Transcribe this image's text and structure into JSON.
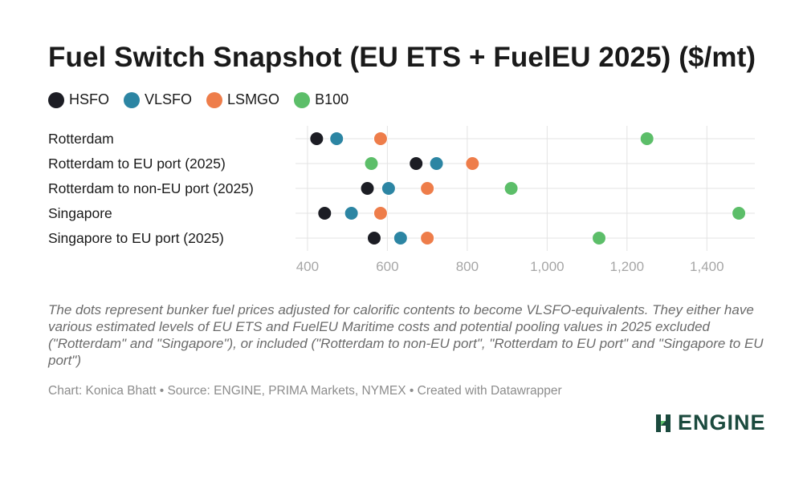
{
  "colors": {
    "HSFO": "#1c1d24",
    "VLSFO": "#2c85a3",
    "LSMGO": "#ee7d4a",
    "B100": "#5cbe69",
    "grid": "#e3e3e3",
    "tick": "#a6a6a6",
    "logo": "#1b4a3e"
  },
  "footer": {
    "note": "The dots represent bunker fuel prices adjusted for calorific contents to become VLSFO-equivalents. They either have various estimated levels of EU ETS and FuelEU Maritime costs and potential pooling values in 2025 excluded (\"Rotterdam\" and \"Singapore\"), or included (\"Rotterdam to non-EU port\", \"Rotterdam to EU port\" and \"Singapore to EU port\")",
    "source": "Chart: Konica Bhatt • Source: ENGINE, PRIMA Markets, NYMEX • Created with Datawrapper"
  },
  "logo": {
    "text": "ENGINE",
    "icon": "engine-logo-icon"
  },
  "chart_data": {
    "type": "scatter",
    "title": "Fuel Switch Snapshot (EU ETS + FuelEU 2025) ($/mt)",
    "xlabel": "",
    "ylabel": "",
    "xlim": [
      370,
      1520
    ],
    "xticks": [
      400,
      600,
      800,
      1000,
      1200,
      1400
    ],
    "xtick_labels": [
      "400",
      "600",
      "800",
      "1,000",
      "1,200",
      "1,400"
    ],
    "grid": true,
    "legend_position": "top-left",
    "categories": [
      "Rotterdam",
      "Rotterdam to EU port (2025)",
      "Rotterdam to non-EU port (2025)",
      "Singapore",
      "Singapore to EU port (2025)"
    ],
    "series": [
      {
        "name": "HSFO",
        "values": [
          423,
          672,
          550,
          443,
          567
        ]
      },
      {
        "name": "VLSFO",
        "values": [
          473,
          723,
          603,
          510,
          633
        ]
      },
      {
        "name": "LSMGO",
        "values": [
          583,
          813,
          700,
          583,
          700
        ]
      },
      {
        "name": "B100",
        "values": [
          1250,
          560,
          910,
          1480,
          1130
        ]
      }
    ]
  }
}
